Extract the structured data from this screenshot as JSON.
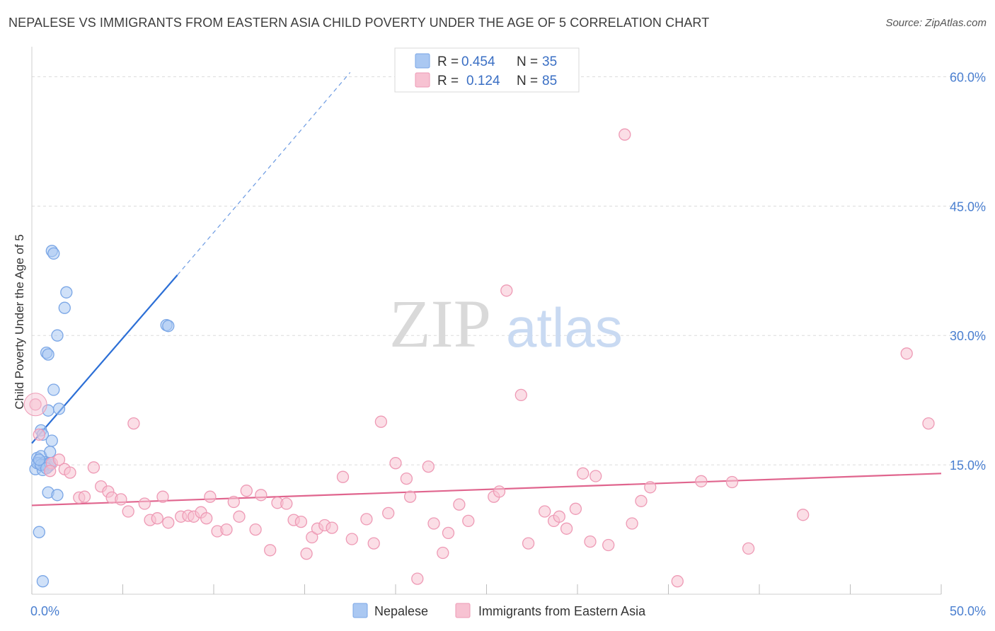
{
  "title": "NEPALESE VS IMMIGRANTS FROM EASTERN ASIA CHILD POVERTY UNDER THE AGE OF 5 CORRELATION CHART",
  "source": "Source: ZipAtlas.com",
  "watermark": {
    "zip": "ZIP",
    "atlas": "atlas"
  },
  "chart_data": {
    "type": "scatter",
    "ylabel": "Child Poverty Under the Age of 5",
    "xlabel": "",
    "xlim": [
      0,
      50
    ],
    "ylim": [
      0,
      62.5
    ],
    "x_tick_labels": [
      "0.0%",
      "50.0%"
    ],
    "y_ticks": [
      15,
      30,
      45,
      60
    ],
    "y_tick_labels": [
      "15.0%",
      "30.0%",
      "45.0%",
      "60.0%"
    ],
    "grid": true,
    "legend": {
      "position": "top-center",
      "entries": [
        {
          "series": "Nepalese",
          "r_label": "R =",
          "r_value": "0.454",
          "n_label": "N =",
          "n_value": "35"
        },
        {
          "series": "Immigrants from Eastern Asia",
          "r_label": "R =",
          "r_value": "0.124",
          "n_label": "N =",
          "n_value": "85"
        }
      ]
    },
    "series": [
      {
        "name": "Nepalese",
        "color": "#7aa6e6",
        "fill": "#aac8f2",
        "trend": {
          "x0": 0,
          "y0": 17.5,
          "x1": 8,
          "y1": 37,
          "dash_to_x": 17.5,
          "dash_to_y": 60.5,
          "color": "#2c6fd6"
        },
        "points": [
          [
            0.2,
            14.5
          ],
          [
            0.3,
            15.8
          ],
          [
            0.4,
            15.2
          ],
          [
            0.5,
            16.0
          ],
          [
            0.5,
            19.0
          ],
          [
            0.6,
            14.4
          ],
          [
            0.7,
            15.3
          ],
          [
            0.6,
            18.5
          ],
          [
            0.8,
            15.1
          ],
          [
            0.9,
            14.8
          ],
          [
            1.0,
            15.0
          ],
          [
            0.9,
            21.3
          ],
          [
            1.1,
            17.8
          ],
          [
            1.0,
            16.5
          ],
          [
            0.8,
            28.0
          ],
          [
            0.9,
            27.8
          ],
          [
            1.2,
            23.7
          ],
          [
            1.5,
            21.5
          ],
          [
            1.4,
            30.0
          ],
          [
            1.8,
            33.2
          ],
          [
            1.9,
            35.0
          ],
          [
            1.1,
            39.8
          ],
          [
            1.2,
            39.5
          ],
          [
            7.4,
            31.2
          ],
          [
            7.5,
            31.1
          ],
          [
            0.4,
            7.2
          ],
          [
            0.6,
            1.5
          ],
          [
            0.9,
            11.8
          ],
          [
            1.4,
            11.5
          ],
          [
            0.3,
            15.2
          ],
          [
            0.7,
            15.0
          ],
          [
            0.5,
            15.0
          ],
          [
            1.0,
            15.2
          ],
          [
            0.8,
            14.6
          ],
          [
            0.4,
            15.6
          ]
        ]
      },
      {
        "name": "Immigrants from Eastern Asia",
        "color": "#ee9ab5",
        "fill": "#f7c2d2",
        "trend": {
          "x0": 0,
          "y0": 10.3,
          "x1": 50,
          "y1": 14.0,
          "color": "#e0658e"
        },
        "points": [
          [
            0.2,
            22.0
          ],
          [
            0.4,
            18.5
          ],
          [
            1.1,
            15.2
          ],
          [
            1.5,
            15.6
          ],
          [
            1.8,
            14.5
          ],
          [
            2.1,
            14.1
          ],
          [
            2.6,
            11.2
          ],
          [
            2.9,
            11.3
          ],
          [
            3.4,
            14.7
          ],
          [
            3.8,
            12.5
          ],
          [
            4.2,
            11.9
          ],
          [
            4.4,
            11.2
          ],
          [
            4.9,
            11.0
          ],
          [
            5.3,
            9.6
          ],
          [
            5.6,
            19.8
          ],
          [
            6.2,
            10.5
          ],
          [
            6.5,
            8.6
          ],
          [
            6.9,
            8.8
          ],
          [
            7.2,
            11.3
          ],
          [
            7.5,
            8.3
          ],
          [
            8.2,
            9.0
          ],
          [
            8.6,
            9.1
          ],
          [
            8.9,
            9.0
          ],
          [
            9.3,
            9.5
          ],
          [
            9.6,
            8.8
          ],
          [
            9.8,
            11.3
          ],
          [
            10.2,
            7.3
          ],
          [
            10.7,
            7.5
          ],
          [
            11.1,
            10.7
          ],
          [
            11.4,
            9.0
          ],
          [
            11.8,
            12.0
          ],
          [
            12.3,
            7.5
          ],
          [
            12.6,
            11.5
          ],
          [
            13.1,
            5.1
          ],
          [
            13.5,
            10.6
          ],
          [
            14.0,
            10.5
          ],
          [
            14.4,
            8.6
          ],
          [
            14.8,
            8.4
          ],
          [
            15.1,
            4.7
          ],
          [
            15.4,
            6.6
          ],
          [
            15.7,
            7.6
          ],
          [
            16.1,
            8.0
          ],
          [
            16.5,
            7.7
          ],
          [
            17.1,
            13.6
          ],
          [
            17.6,
            6.4
          ],
          [
            18.4,
            8.7
          ],
          [
            18.8,
            5.9
          ],
          [
            19.2,
            20.0
          ],
          [
            19.6,
            9.4
          ],
          [
            20.0,
            15.2
          ],
          [
            20.6,
            13.4
          ],
          [
            20.8,
            11.3
          ],
          [
            21.2,
            1.8
          ],
          [
            21.8,
            14.8
          ],
          [
            22.1,
            8.2
          ],
          [
            22.6,
            4.8
          ],
          [
            22.9,
            7.1
          ],
          [
            23.5,
            10.4
          ],
          [
            24.0,
            8.5
          ],
          [
            25.4,
            11.3
          ],
          [
            25.7,
            11.9
          ],
          [
            26.1,
            35.2
          ],
          [
            26.9,
            23.1
          ],
          [
            27.3,
            5.9
          ],
          [
            28.2,
            9.6
          ],
          [
            28.7,
            8.5
          ],
          [
            29.0,
            9.0
          ],
          [
            29.4,
            7.6
          ],
          [
            29.9,
            9.9
          ],
          [
            30.3,
            14.0
          ],
          [
            30.7,
            6.1
          ],
          [
            31.0,
            13.7
          ],
          [
            31.7,
            5.7
          ],
          [
            32.6,
            53.3
          ],
          [
            33.0,
            8.2
          ],
          [
            33.5,
            10.8
          ],
          [
            34.0,
            12.4
          ],
          [
            35.5,
            1.5
          ],
          [
            36.8,
            13.1
          ],
          [
            38.5,
            13.0
          ],
          [
            39.4,
            5.3
          ],
          [
            42.4,
            9.2
          ],
          [
            48.1,
            27.9
          ],
          [
            49.3,
            19.8
          ],
          [
            1.0,
            14.3
          ]
        ]
      }
    ]
  }
}
